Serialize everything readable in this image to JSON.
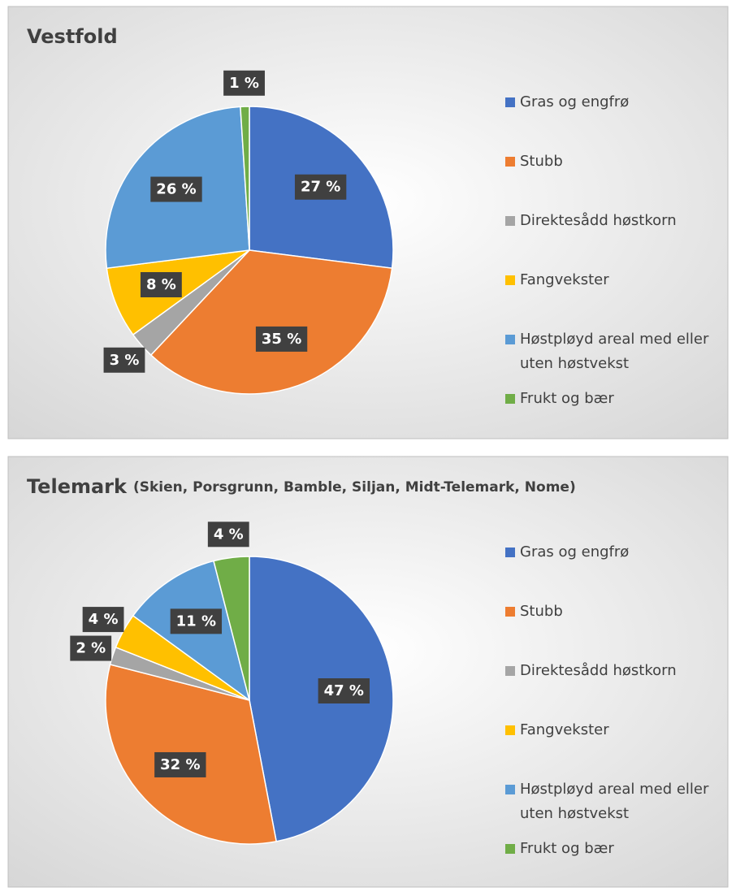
{
  "chart_data": [
    {
      "type": "pie",
      "title": "Vestfold",
      "categories": [
        "Gras og engfrø",
        "Stubb",
        "Direktesådd høstkorn",
        "Fangvekster",
        "Høstpløyd areal med eller uten høstvekst",
        "Frukt og bær"
      ],
      "values": [
        27,
        35,
        3,
        8,
        26,
        1
      ],
      "value_labels": [
        "27 %",
        "35 %",
        "3 %",
        "8 %",
        "26 %",
        "1 %"
      ],
      "colors": [
        "#4472c4",
        "#ed7d31",
        "#a5a5a5",
        "#ffc000",
        "#5b9bd5",
        "#70ad47"
      ],
      "legend": "right"
    },
    {
      "type": "pie",
      "title": "Telemark",
      "subtitle": "(Skien, Porsgrunn, Bamble, Siljan, Midt-Telemark, Nome)",
      "categories": [
        "Gras og engfrø",
        "Stubb",
        "Direktesådd høstkorn",
        "Fangvekster",
        "Høstpløyd areal med eller uten høstvekst",
        "Frukt og bær"
      ],
      "values": [
        47,
        32,
        2,
        4,
        11,
        4
      ],
      "value_labels": [
        "47 %",
        "32 %",
        "2 %",
        "4 %",
        "11 %",
        "4 %"
      ],
      "colors": [
        "#4472c4",
        "#ed7d31",
        "#a5a5a5",
        "#ffc000",
        "#5b9bd5",
        "#70ad47"
      ],
      "legend": "right"
    }
  ]
}
